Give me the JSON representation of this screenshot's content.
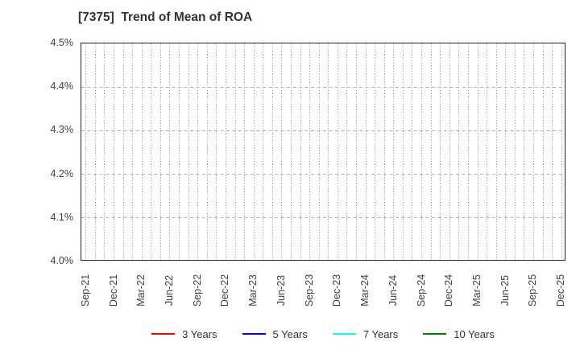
{
  "title": "[7375]  Trend of Mean of ROA",
  "chart_data": {
    "type": "line",
    "title": "[7375]  Trend of Mean of ROA",
    "x_tick_labels": [
      "Sep-21",
      "Dec-21",
      "Mar-22",
      "Jun-22",
      "Sep-22",
      "Dec-22",
      "Mar-23",
      "Jun-23",
      "Sep-23",
      "Dec-23",
      "Mar-24",
      "Jun-24",
      "Sep-24",
      "Dec-24",
      "Mar-25",
      "Jun-25",
      "Sep-25",
      "Dec-25"
    ],
    "x_minor_ticks_per_label": 3,
    "x_total_minor_ticks": 52,
    "y_tick_labels": [
      "4.5%",
      "4.4%",
      "4.3%",
      "4.2%",
      "4.1%",
      "4.0%"
    ],
    "ylim": [
      4.0,
      4.5
    ],
    "grid": true,
    "legend_position": "bottom",
    "series": [
      {
        "name": "3 Years",
        "color": "#ff0000",
        "values": []
      },
      {
        "name": "5 Years",
        "color": "#0000ff",
        "values": []
      },
      {
        "name": "7 Years",
        "color": "#00ffff",
        "values": []
      },
      {
        "name": "10 Years",
        "color": "#008000",
        "values": []
      }
    ]
  },
  "colors": {
    "axis_border": "#262626",
    "grid_vertical": "#999999",
    "grid_horizontal": "#b3b3b3",
    "title_text": "#333333",
    "tick_text": "#404040",
    "legend_text": "#333333"
  }
}
